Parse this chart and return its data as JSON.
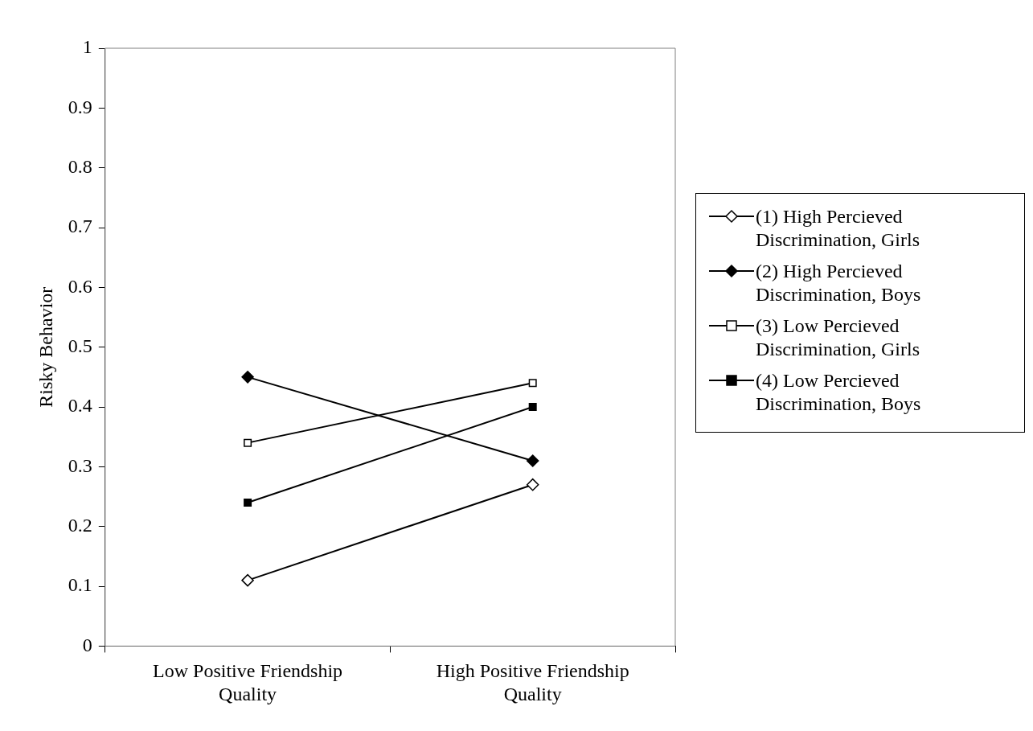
{
  "chart_data": {
    "type": "line",
    "ylabel": "Risky Behavior",
    "categories": [
      "Low Positive Friendship Quality",
      "High Positive Friendship Quality"
    ],
    "ylim": [
      0,
      1
    ],
    "yticks": [
      0,
      0.1,
      0.2,
      0.3,
      0.4,
      0.5,
      0.6,
      0.7,
      0.8,
      0.9,
      1
    ],
    "grid": false,
    "legend": "right",
    "line_style": "solid",
    "series": [
      {
        "name": "(1) High Percieved Discrimination, Girls",
        "color": "#000000",
        "marker": "diamond",
        "colors": [
          "#ffffff",
          "#ffffff"
        ],
        "values": [
          0.11,
          0.27
        ]
      },
      {
        "name": "(2) High Percieved Discrimination, Boys",
        "color": "#000000",
        "marker": "diamond",
        "values": [
          0.45,
          0.31
        ]
      },
      {
        "name": "(3) Low Percieved Discrimination, Girls",
        "color": "#000000",
        "marker": "square",
        "colors": [
          "#ffffff",
          "#ffffff"
        ],
        "values": [
          0.34,
          0.44
        ]
      },
      {
        "name": "(4) Low Percieved Discrimination, Boys",
        "color": "#000000",
        "marker": "square",
        "values": [
          0.24,
          0.4
        ]
      }
    ]
  }
}
